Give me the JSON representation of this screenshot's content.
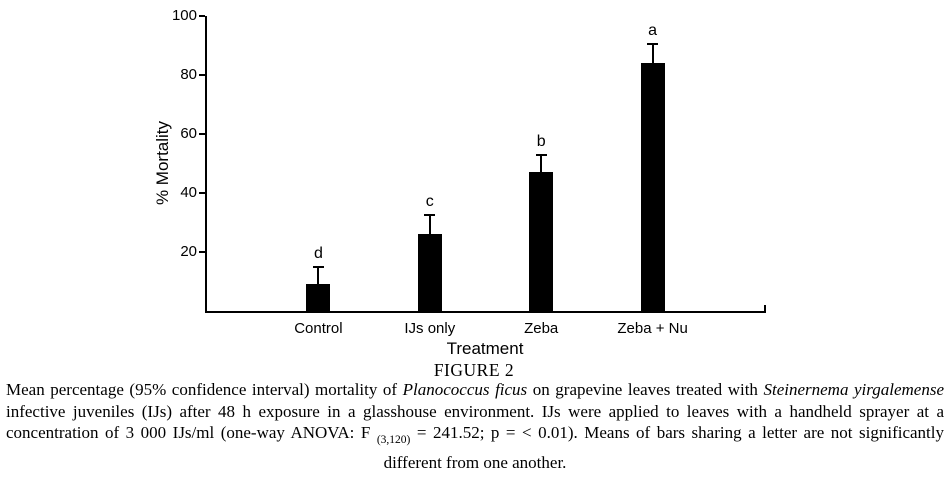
{
  "page": {
    "background": "#ffffff",
    "text_color": "#000000"
  },
  "chart_data": {
    "type": "bar",
    "title": "FIGURE 2",
    "xlabel": "Treatment",
    "ylabel": "% Mortality",
    "categories": [
      "Control",
      "IJs only",
      "Zeba",
      "Zeba + Nu"
    ],
    "values": [
      9,
      26,
      47,
      84
    ],
    "error_plus": [
      6,
      6.5,
      6,
      6.5
    ],
    "sig_letters": [
      "d",
      "c",
      "b",
      "a"
    ],
    "ylim": [
      0,
      100
    ],
    "yticks": [
      20,
      40,
      60,
      80,
      100
    ],
    "bar_color": "#000000",
    "axis_color": "#000000",
    "grid": false,
    "legend": false
  },
  "caption": {
    "segments": [
      {
        "text": "Mean percentage (95% confidence interval) mortality of ",
        "style": "normal"
      },
      {
        "text": "Planococcus ficus",
        "style": "italic"
      },
      {
        "text": " on grapevine leaves treated with ",
        "style": "normal"
      },
      {
        "text": "Steinernema yirgalemense",
        "style": "italic"
      },
      {
        "text": " infective juveniles (IJs) after 48 h exposure in a glasshouse environment. IJs were applied to leaves with a handheld sprayer at a concentration of 3 000 IJs/ml (one-way ANOVA: F ",
        "style": "normal"
      },
      {
        "text": "(3,120)",
        "style": "subscript"
      },
      {
        "text": " = 241.52; p = < 0.01). Means of bars sharing a letter are not significantly different from one another.",
        "style": "normal"
      }
    ]
  }
}
